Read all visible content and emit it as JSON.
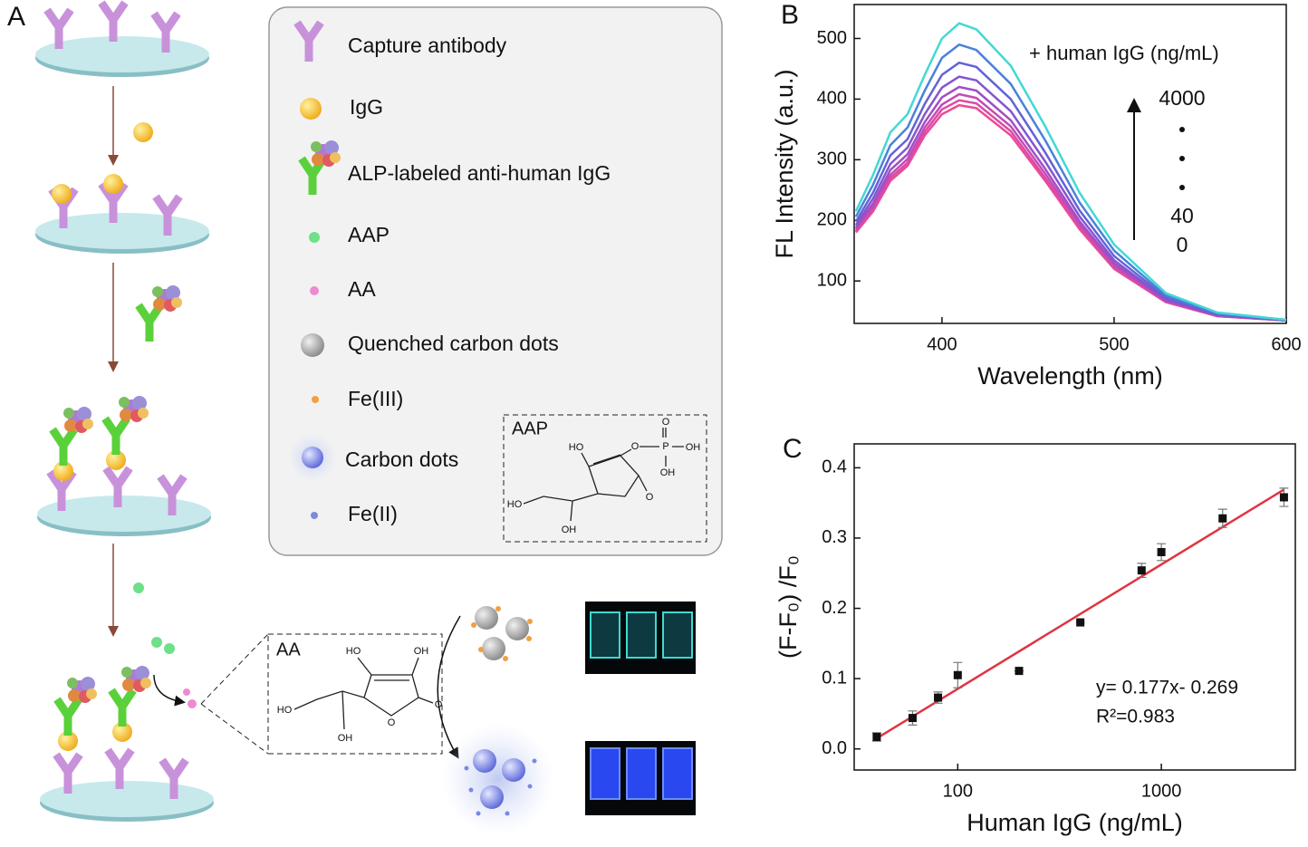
{
  "panel_a": {
    "label": "A",
    "legend": [
      "Capture antibody",
      "IgG",
      "ALP-labeled anti-human IgG",
      "AAP",
      "AA",
      "Quenched carbon dots",
      "Fe(III)",
      "Carbon dots",
      "Fe(II)"
    ],
    "aap_structure": {
      "title": "AAP",
      "atoms": [
        "HO",
        "O",
        "P",
        "O",
        "OH",
        "OH",
        "O",
        "HO",
        "OH"
      ]
    },
    "aa_structure": {
      "title": "AA",
      "atoms": [
        "HO",
        "OH",
        "HO",
        "O",
        "O",
        "OH"
      ]
    }
  },
  "chart_data": [
    {
      "type": "line",
      "panel_label": "B",
      "xlabel": "Wavelength (nm)",
      "ylabel": "FL Intensity (a.u.)",
      "annotation": "+ human IgG (ng/mL)",
      "arrow_labels": [
        "4000",
        "40",
        "0"
      ],
      "x": [
        350,
        360,
        370,
        380,
        390,
        400,
        410,
        420,
        440,
        460,
        480,
        500,
        530,
        560,
        600
      ],
      "series": [
        {
          "color": "#ec4a98",
          "values": [
            180,
            215,
            265,
            290,
            340,
            375,
            390,
            385,
            340,
            265,
            185,
            120,
            65,
            42,
            35
          ]
        },
        {
          "color": "#dc4aa6",
          "values": [
            182,
            219,
            270,
            295,
            346,
            383,
            398,
            393,
            347,
            270,
            189,
            122,
            66,
            42,
            35
          ]
        },
        {
          "color": "#c24cb6",
          "values": [
            185,
            223,
            275,
            301,
            353,
            391,
            408,
            402,
            355,
            277,
            193,
            125,
            67,
            43,
            35
          ]
        },
        {
          "color": "#a24ec4",
          "values": [
            188,
            228,
            283,
            309,
            362,
            403,
            420,
            414,
            365,
            285,
            198,
            129,
            68,
            43,
            35
          ]
        },
        {
          "color": "#8455cf",
          "values": [
            192,
            236,
            293,
            320,
            375,
            419,
            437,
            431,
            380,
            297,
            206,
            134,
            70,
            44,
            35
          ]
        },
        {
          "color": "#6462d6",
          "values": [
            198,
            246,
            307,
            334,
            392,
            440,
            460,
            453,
            400,
            312,
            216,
            141,
            73,
            45,
            36
          ]
        },
        {
          "color": "#4a82da",
          "values": [
            206,
            259,
            324,
            353,
            414,
            468,
            490,
            481,
            425,
            332,
            229,
            150,
            76,
            46,
            36
          ]
        },
        {
          "color": "#44d8d4",
          "values": [
            215,
            275,
            345,
            375,
            440,
            500,
            525,
            515,
            455,
            355,
            245,
            160,
            80,
            48,
            36
          ]
        }
      ],
      "xlim": [
        349,
        600
      ],
      "xticks": [
        400,
        500,
        600
      ],
      "ylim": [
        30,
        556
      ],
      "yticks": [
        100,
        200,
        300,
        400,
        500
      ],
      "grid": false
    },
    {
      "type": "scatter",
      "panel_label": "C",
      "xlabel": "Human IgG (ng/mL)",
      "ylabel": "(F-F₀) /F₀",
      "annotations": [
        "y= 0.177x- 0.269",
        "R²=0.983"
      ],
      "xscale": "log",
      "color": "#111111",
      "x": [
        40,
        60,
        80,
        100,
        200,
        400,
        800,
        1000,
        2000,
        4000
      ],
      "values": [
        0.017,
        0.044,
        0.073,
        0.105,
        0.111,
        0.18,
        0.254,
        0.28,
        0.328,
        0.358
      ],
      "errors": [
        0.006,
        0.01,
        0.008,
        0.018,
        0,
        0,
        0.01,
        0.012,
        0.013,
        0.013
      ],
      "fit_line": {
        "x": [
          40,
          4000
        ],
        "y": [
          0.015,
          0.369
        ],
        "color": "#e03440"
      },
      "xlim": [
        31,
        4550
      ],
      "xticks": [
        100,
        1000
      ],
      "ylim": [
        -0.03,
        0.434
      ],
      "yticks": [
        {
          "value": 0,
          "label": "0.0"
        },
        0.1,
        0.2,
        0.3,
        0.4
      ],
      "grid": false
    }
  ]
}
